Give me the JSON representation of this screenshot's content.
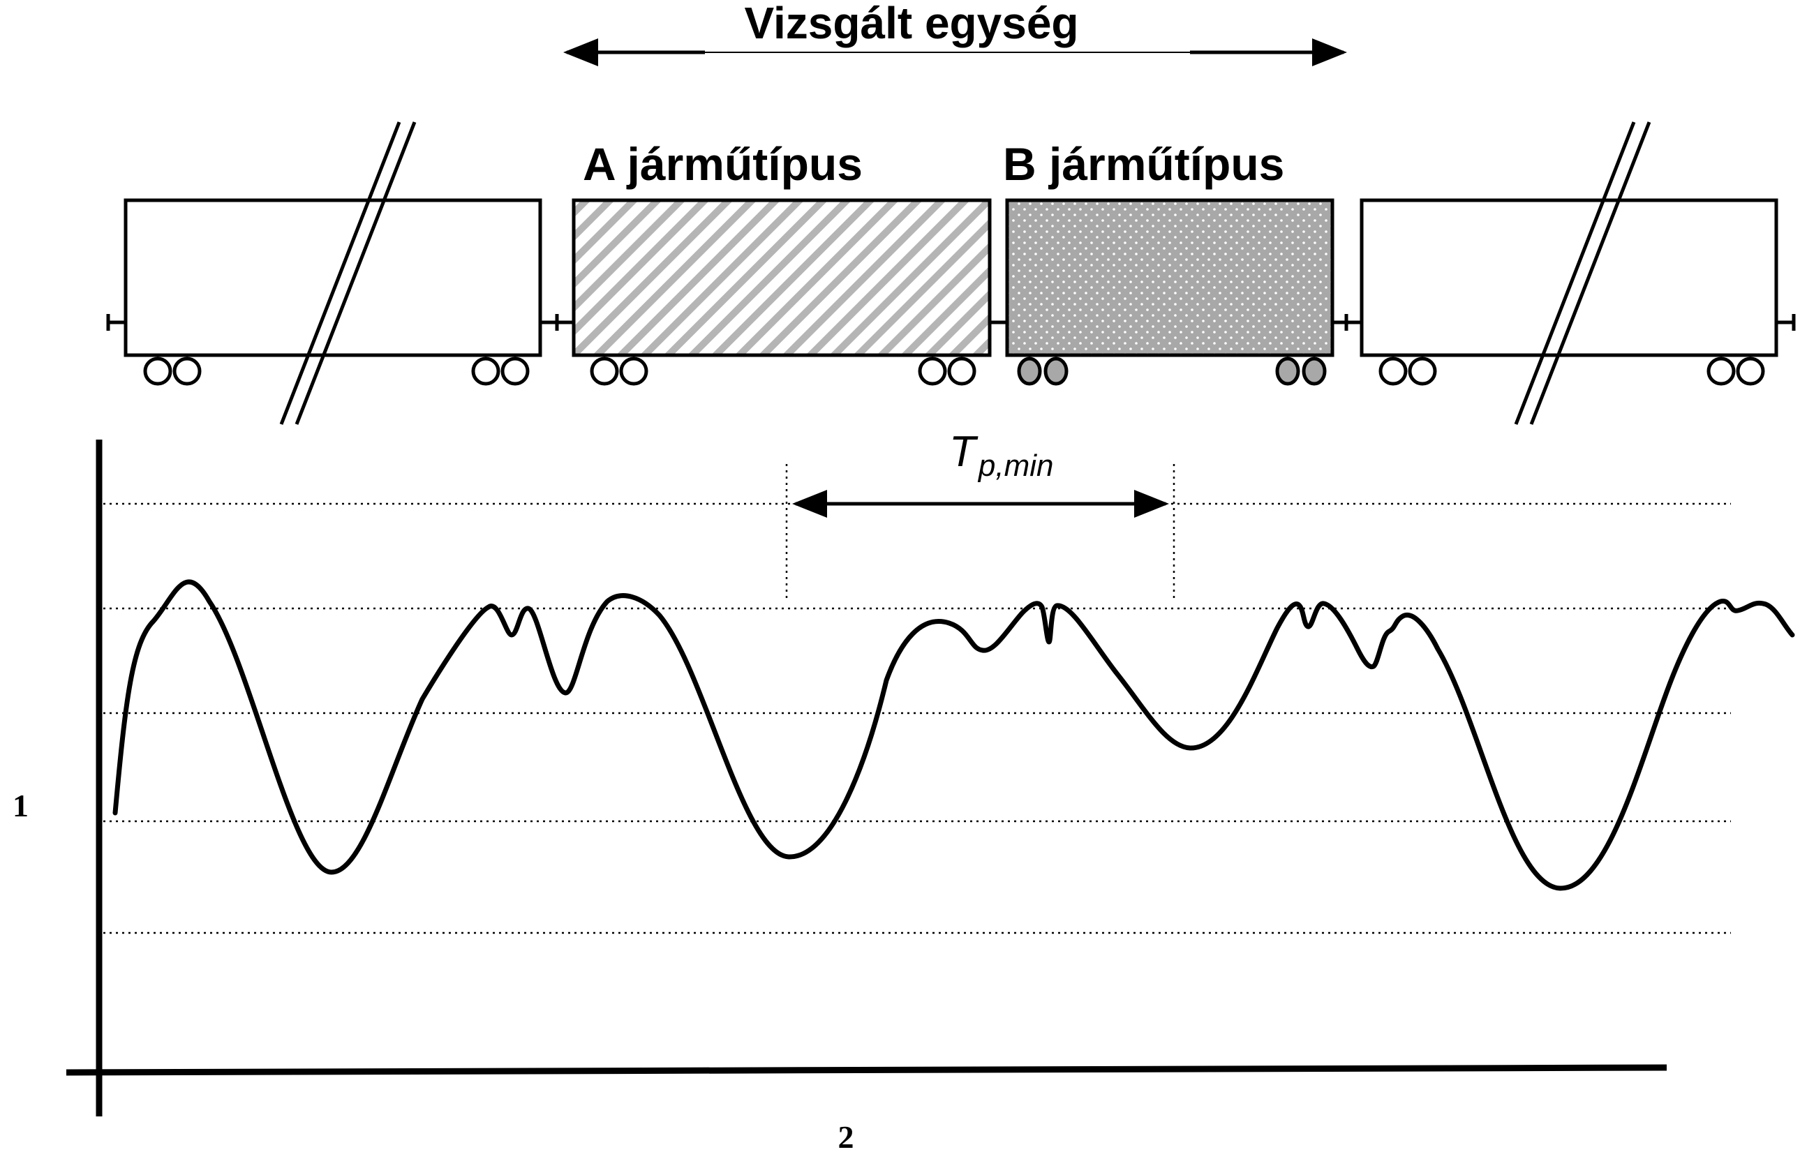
{
  "title": "Vizsgált egység",
  "vehicle_a_label": "A járműtípus",
  "vehicle_b_label": "B járműtípus",
  "period_symbol": "T",
  "period_subscript": "p,min",
  "y_axis_label": "1",
  "x_axis_label": "2",
  "colors": {
    "stroke": "#000000",
    "hatch": "#b5b5b5",
    "dots_fill": "#a8a8a8",
    "background": "#ffffff"
  }
}
